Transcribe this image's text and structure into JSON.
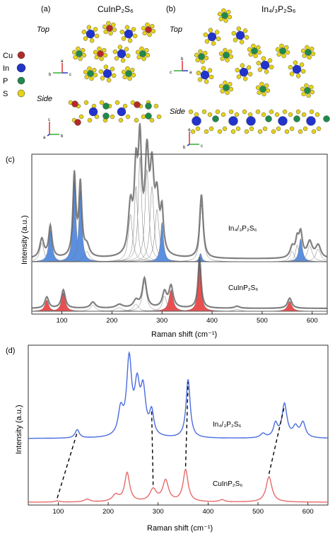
{
  "structures": {
    "panel_a": {
      "label": "(a)",
      "title": "CuInP₂S₆",
      "top_label": "Top",
      "side_label": "Side",
      "legend": [
        {
          "name": "Cu",
          "color": "#b42a2a"
        },
        {
          "name": "In",
          "color": "#2233cc"
        },
        {
          "name": "P",
          "color": "#1f8a4a"
        },
        {
          "name": "S",
          "color": "#e6d21a"
        }
      ],
      "top_axes": [
        "a",
        "b",
        "c"
      ],
      "side_axes": [
        "c",
        "b",
        "a"
      ]
    },
    "panel_b": {
      "label": "(b)",
      "title": "In₄/₃P₂S₆",
      "top_label": "Top",
      "side_label": "Side",
      "top_axes": [
        "b",
        "c",
        "a"
      ],
      "side_axes": [
        "a",
        "c",
        "b"
      ]
    }
  },
  "colors": {
    "blue_fill": "#5b8fe0",
    "red_fill": "#e85050",
    "gray_trace": "#555555",
    "blue_line": "#4a6de0",
    "red_line": "#e86a6a",
    "dash": "#000000"
  },
  "chart_data": [
    {
      "panel_label": "(c)",
      "type": "line",
      "xlabel": "Raman shift (cm⁻¹)",
      "ylabel": "Intensity (a.u.)",
      "xlim": [
        40,
        630
      ],
      "xticks": [
        100,
        200,
        300,
        400,
        500,
        600
      ],
      "series": [
        {
          "name": "In₄/₃P₂S₆",
          "peaks": [
            {
              "x": 60,
              "h": 0.18,
              "w": 5,
              "fill": false
            },
            {
              "x": 77,
              "h": 0.3,
              "w": 4,
              "fill": true
            },
            {
              "x": 125,
              "h": 0.78,
              "w": 3.5,
              "fill": true
            },
            {
              "x": 137,
              "h": 0.68,
              "w": 3.5,
              "fill": true
            },
            {
              "x": 150,
              "h": 0.1,
              "w": 6,
              "fill": false
            },
            {
              "x": 237,
              "h": 0.45,
              "w": 5,
              "fill": false
            },
            {
              "x": 248,
              "h": 0.72,
              "w": 4,
              "fill": false
            },
            {
              "x": 256,
              "h": 1.0,
              "w": 4,
              "fill": false
            },
            {
              "x": 270,
              "h": 0.88,
              "w": 4.5,
              "fill": false
            },
            {
              "x": 280,
              "h": 0.72,
              "w": 4.5,
              "fill": false
            },
            {
              "x": 290,
              "h": 0.5,
              "w": 5,
              "fill": false
            },
            {
              "x": 300,
              "h": 0.38,
              "w": 3.5,
              "fill": true
            },
            {
              "x": 377,
              "h": 0.08,
              "w": 3,
              "fill": true
            },
            {
              "x": 379,
              "h": 0.55,
              "w": 4,
              "fill": false
            },
            {
              "x": 560,
              "h": 0.1,
              "w": 5,
              "fill": false
            },
            {
              "x": 570,
              "h": 0.16,
              "w": 4,
              "fill": false
            },
            {
              "x": 577,
              "h": 0.22,
              "w": 4,
              "fill": true
            },
            {
              "x": 595,
              "h": 0.15,
              "w": 6,
              "fill": false
            },
            {
              "x": 612,
              "h": 0.12,
              "w": 6,
              "fill": false
            }
          ]
        },
        {
          "name": "CuInP₂S₆",
          "peaks": [
            {
              "x": 70,
              "h": 0.22,
              "w": 4.5,
              "fill": true
            },
            {
              "x": 103,
              "h": 0.36,
              "w": 4.5,
              "fill": true
            },
            {
              "x": 162,
              "h": 0.12,
              "w": 6,
              "fill": false
            },
            {
              "x": 215,
              "h": 0.07,
              "w": 8,
              "fill": false
            },
            {
              "x": 248,
              "h": 0.14,
              "w": 6,
              "fill": false
            },
            {
              "x": 265,
              "h": 0.58,
              "w": 5,
              "fill": false
            },
            {
              "x": 305,
              "h": 0.3,
              "w": 5,
              "fill": false
            },
            {
              "x": 318,
              "h": 0.42,
              "w": 5,
              "fill": true
            },
            {
              "x": 375,
              "h": 1.0,
              "w": 3.5,
              "fill": true
            },
            {
              "x": 450,
              "h": 0.04,
              "w": 6,
              "fill": false
            },
            {
              "x": 555,
              "h": 0.2,
              "w": 5,
              "fill": true
            }
          ]
        }
      ]
    },
    {
      "panel_label": "(d)",
      "type": "line",
      "xlabel": "Raman shift (cm⁻¹)",
      "ylabel": "Intensity (a.u.)",
      "xlim": [
        40,
        640
      ],
      "xticks": [
        100,
        200,
        300,
        400,
        500,
        600
      ],
      "series": [
        {
          "name": "In₄/₃P₂S₆",
          "peaks": [
            {
              "x": 138,
              "h": 0.1,
              "w": 5
            },
            {
              "x": 225,
              "h": 0.3,
              "w": 6
            },
            {
              "x": 242,
              "h": 0.9,
              "w": 6
            },
            {
              "x": 258,
              "h": 0.55,
              "w": 6
            },
            {
              "x": 270,
              "h": 0.52,
              "w": 6
            },
            {
              "x": 287,
              "h": 0.28,
              "w": 5
            },
            {
              "x": 360,
              "h": 0.7,
              "w": 5
            },
            {
              "x": 510,
              "h": 0.05,
              "w": 6
            },
            {
              "x": 535,
              "h": 0.16,
              "w": 5
            },
            {
              "x": 553,
              "h": 0.4,
              "w": 6
            },
            {
              "x": 575,
              "h": 0.12,
              "w": 6
            },
            {
              "x": 590,
              "h": 0.18,
              "w": 6
            }
          ]
        },
        {
          "name": "CuInP₂S₆",
          "peaks": [
            {
              "x": 98,
              "h": 0.02,
              "w": 6
            },
            {
              "x": 158,
              "h": 0.05,
              "w": 7
            },
            {
              "x": 215,
              "h": 0.12,
              "w": 8
            },
            {
              "x": 238,
              "h": 0.52,
              "w": 6
            },
            {
              "x": 290,
              "h": 0.22,
              "w": 8
            },
            {
              "x": 315,
              "h": 0.38,
              "w": 7
            },
            {
              "x": 355,
              "h": 0.58,
              "w": 6
            },
            {
              "x": 428,
              "h": 0.04,
              "w": 6
            },
            {
              "x": 522,
              "h": 0.46,
              "w": 7
            }
          ]
        }
      ],
      "shift_lines": [
        {
          "from": 98,
          "to": 138
        },
        {
          "from": 290,
          "to": 287
        },
        {
          "from": 355,
          "to": 360
        },
        {
          "from": 522,
          "to": 553
        }
      ]
    }
  ]
}
